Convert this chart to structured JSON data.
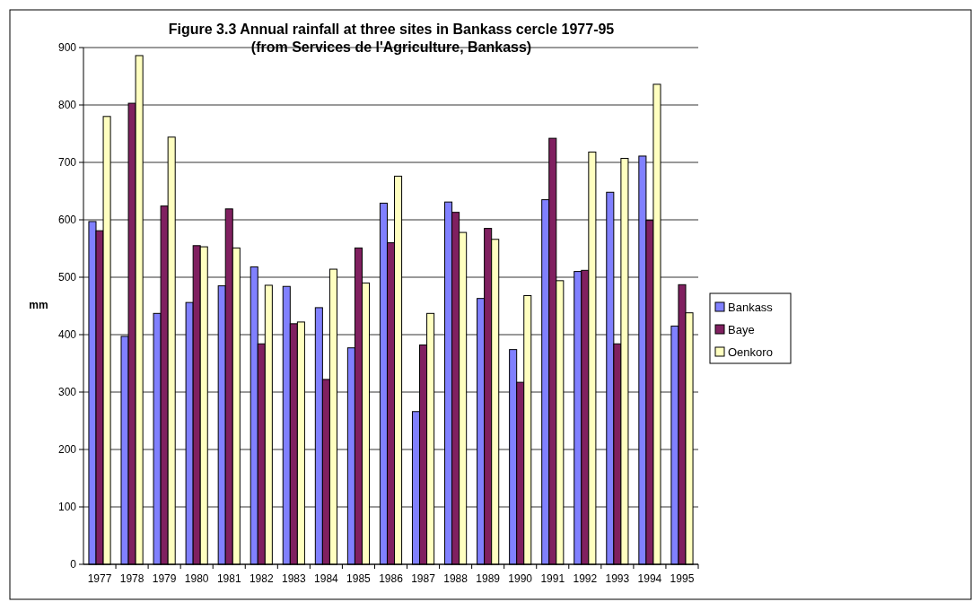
{
  "chart_data": {
    "type": "bar",
    "title": "Figure 3.3  Annual rainfall at three sites in Bankass cercle 1977-95",
    "subtitle": "(from Services de l'Agriculture, Bankass)",
    "ylabel": "mm",
    "categories": [
      "1977",
      "1978",
      "1979",
      "1980",
      "1981",
      "1982",
      "1983",
      "1984",
      "1985",
      "1986",
      "1987",
      "1988",
      "1989",
      "1990",
      "1991",
      "1992",
      "1993",
      "1994",
      "1995"
    ],
    "series": [
      {
        "name": "Bankass",
        "color": "#8080ff",
        "values": [
          597,
          397,
          437,
          456,
          485,
          518,
          484,
          447,
          377,
          629,
          266,
          631,
          463,
          374,
          635,
          510,
          648,
          711,
          415
        ]
      },
      {
        "name": "Baye",
        "color": "#802060",
        "values": [
          581,
          803,
          624,
          555,
          619,
          384,
          419,
          322,
          551,
          560,
          382,
          613,
          585,
          317,
          742,
          512,
          384,
          599,
          487
        ]
      },
      {
        "name": "Oenkoro",
        "color": "#ffffc0",
        "values": [
          780,
          886,
          744,
          553,
          551,
          486,
          422,
          514,
          490,
          676,
          437,
          578,
          566,
          468,
          494,
          718,
          707,
          836,
          438
        ]
      }
    ],
    "ylim": [
      0,
      900
    ],
    "yticks": [
      0,
      100,
      200,
      300,
      400,
      500,
      600,
      700,
      800,
      900
    ],
    "grid": "y",
    "legend": "right"
  }
}
